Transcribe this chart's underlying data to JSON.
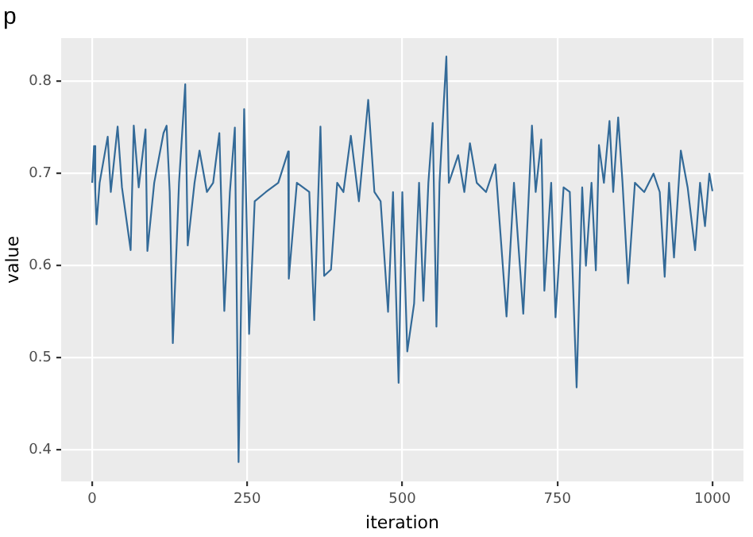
{
  "chart_data": {
    "type": "line",
    "title": "p",
    "xlabel": "iteration",
    "ylabel": "value",
    "x": [
      0,
      3,
      5,
      7,
      12,
      25,
      30,
      41,
      48,
      62,
      67,
      75,
      86,
      89,
      100,
      115,
      120,
      125,
      130,
      140,
      150,
      154,
      165,
      173,
      185,
      195,
      205,
      213,
      222,
      230,
      236,
      245,
      253,
      262,
      280,
      300,
      316,
      317,
      330,
      350,
      358,
      368,
      374,
      385,
      395,
      405,
      417,
      430,
      445,
      455,
      465,
      477,
      485,
      494,
      500,
      508,
      519,
      527,
      534,
      542,
      549,
      555,
      560,
      567,
      571,
      575,
      590,
      600,
      609,
      620,
      635,
      650,
      668,
      680,
      695,
      709,
      715,
      724,
      729,
      740,
      747,
      760,
      770,
      781,
      790,
      796,
      805,
      812,
      817,
      825,
      834,
      840,
      848,
      855,
      864,
      875,
      890,
      905,
      915,
      923,
      930,
      938,
      949,
      960,
      972,
      980,
      988,
      995,
      1000
    ],
    "series": [
      {
        "color": "#336a98",
        "values": [
          0.69,
          0.73,
          0.68,
          0.645,
          0.69,
          0.74,
          0.68,
          0.751,
          0.685,
          0.617,
          0.752,
          0.685,
          0.748,
          0.616,
          0.69,
          0.744,
          0.752,
          0.68,
          0.516,
          0.69,
          0.797,
          0.622,
          0.69,
          0.725,
          0.68,
          0.69,
          0.744,
          0.551,
          0.68,
          0.75,
          0.387,
          0.77,
          0.526,
          0.67,
          0.68,
          0.69,
          0.724,
          0.586,
          0.69,
          0.68,
          0.541,
          0.751,
          0.589,
          0.596,
          0.69,
          0.68,
          0.741,
          0.67,
          0.78,
          0.68,
          0.67,
          0.55,
          0.68,
          0.473,
          0.68,
          0.507,
          0.559,
          0.69,
          0.562,
          0.69,
          0.755,
          0.534,
          0.69,
          0.779,
          0.827,
          0.69,
          0.72,
          0.68,
          0.733,
          0.69,
          0.68,
          0.71,
          0.545,
          0.69,
          0.548,
          0.752,
          0.68,
          0.737,
          0.573,
          0.69,
          0.544,
          0.685,
          0.68,
          0.468,
          0.685,
          0.6,
          0.69,
          0.595,
          0.731,
          0.69,
          0.757,
          0.68,
          0.761,
          0.69,
          0.581,
          0.69,
          0.68,
          0.7,
          0.68,
          0.588,
          0.69,
          0.609,
          0.725,
          0.685,
          0.617,
          0.69,
          0.643,
          0.7,
          0.681
        ]
      }
    ],
    "xlim": [
      -50,
      1050
    ],
    "xticks": [
      0,
      250,
      500,
      750,
      1000
    ],
    "ylim": [
      0.366,
      0.847
    ],
    "yticks": [
      0.4,
      0.5,
      0.6,
      0.7,
      0.8
    ],
    "grid": true,
    "legend": false,
    "marker": "none",
    "line_style": "solid"
  }
}
